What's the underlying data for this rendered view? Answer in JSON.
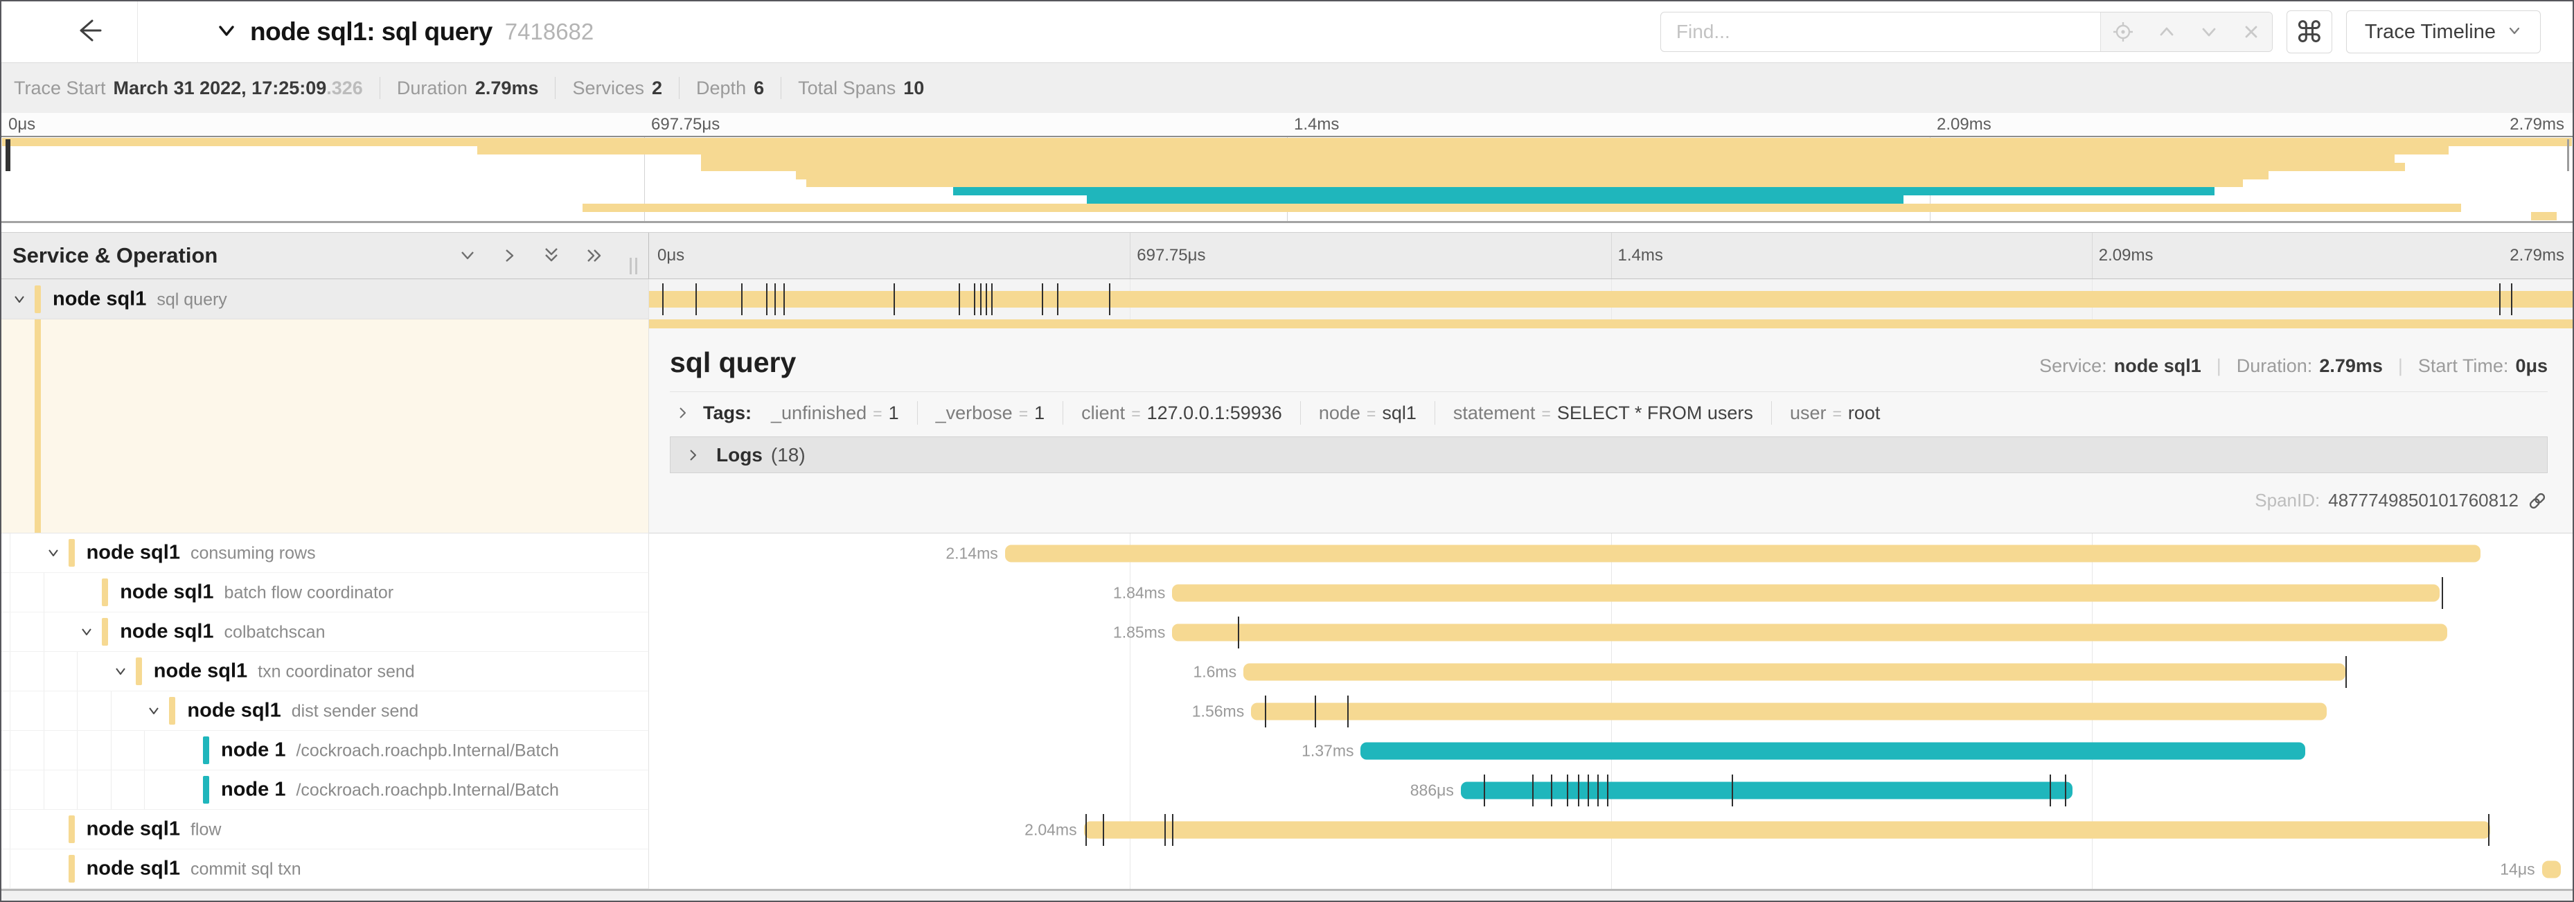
{
  "colors": {
    "tan": "#F6D992",
    "teal": "#1FB6BC",
    "tick": "#2e2e2e",
    "selected_left_bg": "#FDF7EA"
  },
  "header": {
    "title": "node sql1: sql query",
    "trace_id": "7418682",
    "find_placeholder": "Find...",
    "view_selector": "Trace Timeline"
  },
  "trace_meta": {
    "items": [
      {
        "label": "Trace Start",
        "value": "March 31 2022, 17:25:09",
        "suffix": ".326"
      },
      {
        "label": "Duration",
        "value": "2.79ms"
      },
      {
        "label": "Services",
        "value": "2"
      },
      {
        "label": "Depth",
        "value": "6"
      },
      {
        "label": "Total Spans",
        "value": "10"
      }
    ]
  },
  "ruler_labels": [
    "0μs",
    "697.75μs",
    "1.4ms",
    "2.09ms",
    "2.79ms"
  ],
  "tree_header": {
    "label": "Service & Operation"
  },
  "spans": [
    {
      "service": "node sql1",
      "operation": "sql query",
      "depth": 0,
      "color": "tan",
      "expandable": true,
      "duration_label": "",
      "start_pct": 0,
      "width_pct": 100,
      "ticks": [
        0.7,
        2.4,
        4.8,
        6.1,
        6.5,
        7.0,
        12.7,
        16.1,
        16.9,
        17.2,
        17.5,
        17.8,
        20.4,
        21.2,
        23.9,
        96.2,
        96.8
      ]
    },
    {
      "service": "node sql1",
      "operation": "consuming rows",
      "depth": 1,
      "color": "tan",
      "expandable": true,
      "duration_label": "2.14ms",
      "start_pct": 18.5,
      "width_pct": 76.7,
      "ticks": []
    },
    {
      "service": "node sql1",
      "operation": "batch flow coordinator",
      "depth": 2,
      "color": "tan",
      "expandable": false,
      "duration_label": "1.84ms",
      "start_pct": 27.2,
      "width_pct": 65.9,
      "ticks": [
        93.2
      ]
    },
    {
      "service": "node sql1",
      "operation": "colbatchscan",
      "depth": 2,
      "color": "tan",
      "expandable": true,
      "duration_label": "1.85ms",
      "start_pct": 27.2,
      "width_pct": 66.3,
      "ticks": [
        30.6
      ]
    },
    {
      "service": "node sql1",
      "operation": "txn coordinator send",
      "depth": 3,
      "color": "tan",
      "expandable": true,
      "duration_label": "1.6ms",
      "start_pct": 30.9,
      "width_pct": 57.3,
      "ticks": [
        88.2
      ]
    },
    {
      "service": "node sql1",
      "operation": "dist sender send",
      "depth": 4,
      "color": "tan",
      "expandable": true,
      "duration_label": "1.56ms",
      "start_pct": 31.3,
      "width_pct": 55.9,
      "ticks": [
        32.0,
        34.6,
        36.3
      ]
    },
    {
      "service": "node 1",
      "operation": "/cockroach.roachpb.Internal/Batch",
      "depth": 5,
      "color": "teal",
      "expandable": false,
      "duration_label": "1.37ms",
      "start_pct": 37.0,
      "width_pct": 49.1,
      "ticks": []
    },
    {
      "service": "node 1",
      "operation": "/cockroach.roachpb.Internal/Batch",
      "depth": 5,
      "color": "teal",
      "expandable": false,
      "duration_label": "886μs",
      "start_pct": 42.2,
      "width_pct": 31.8,
      "ticks": [
        43.4,
        45.9,
        46.9,
        47.7,
        48.3,
        48.8,
        49.3,
        49.8,
        56.3,
        72.8,
        73.6
      ]
    },
    {
      "service": "node sql1",
      "operation": "flow",
      "depth": 1,
      "color": "tan",
      "expandable": false,
      "duration_label": "2.04ms",
      "start_pct": 22.6,
      "width_pct": 73.1,
      "ticks": [
        22.7,
        23.6,
        26.8,
        27.2,
        95.6
      ]
    },
    {
      "service": "node sql1",
      "operation": "commit sql txn",
      "depth": 1,
      "color": "tan",
      "expandable": false,
      "duration_label": "14μs",
      "start_pct": 98.4,
      "width_pct": 1.0,
      "ticks": []
    }
  ],
  "detail": {
    "title": "sql query",
    "service_label": "Service:",
    "service_value": "node sql1",
    "duration_label": "Duration:",
    "duration_value": "2.79ms",
    "start_label": "Start Time:",
    "start_value": "0μs",
    "tags_label": "Tags:",
    "tags": [
      {
        "key": "_unfinished",
        "value": "1"
      },
      {
        "key": "_verbose",
        "value": "1"
      },
      {
        "key": "client",
        "value": "127.0.0.1:59936"
      },
      {
        "key": "node",
        "value": "sql1"
      },
      {
        "key": "statement",
        "value": "SELECT * FROM users"
      },
      {
        "key": "user",
        "value": "root"
      }
    ],
    "logs_label": "Logs",
    "logs_count": "(18)",
    "spanid_label": "SpanID:",
    "spanid_value": "4877749850101760812"
  }
}
